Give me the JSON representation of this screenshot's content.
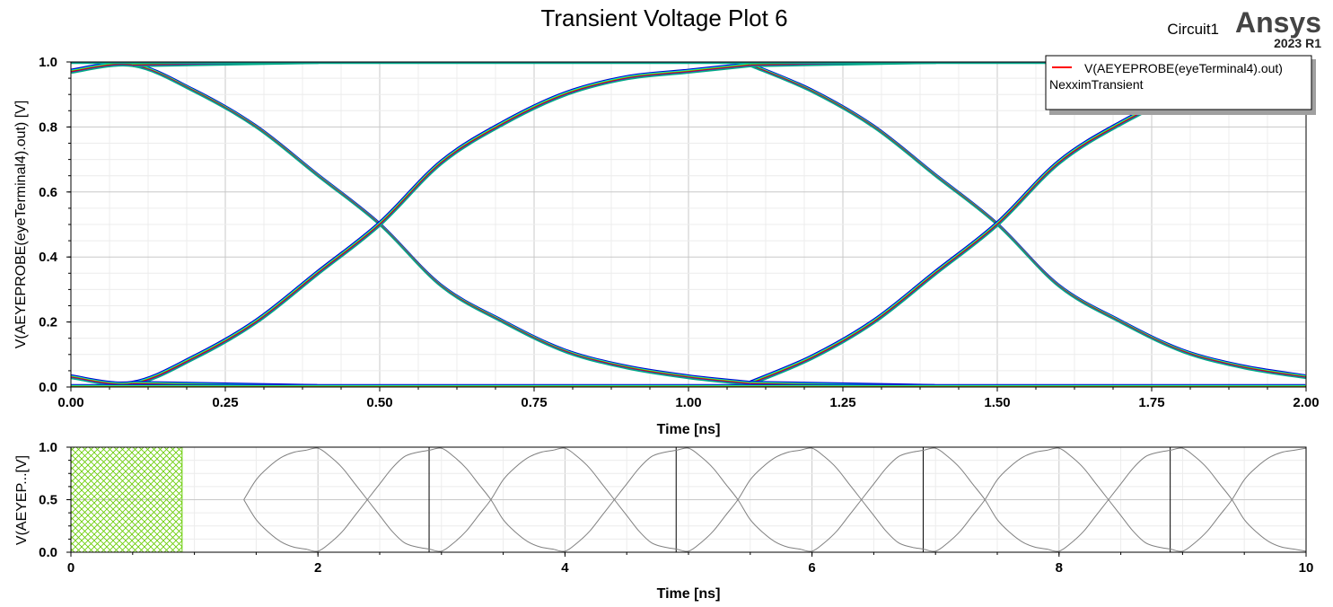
{
  "header": {
    "title": "Transient Voltage Plot 6",
    "circuit": "Circuit1",
    "brand": "Ansys",
    "version": "2023 R1"
  },
  "legend": {
    "series_name": "V(AEYEPROBE(eyeTerminal4).out)",
    "solution": "NexximTransient",
    "swatch_color": "#ff0000"
  },
  "chart_data": [
    {
      "type": "line",
      "role": "eye-diagram",
      "xlabel": "Time [ns]",
      "ylabel": "V(AEYEPROBE(eyeTerminal4).out) [V]",
      "xlim": [
        0,
        2.0
      ],
      "ylim": [
        0,
        1.0
      ],
      "xticks": [
        "0.00",
        "0.25",
        "0.50",
        "0.75",
        "1.00",
        "1.25",
        "1.50",
        "1.75",
        "2.00"
      ],
      "yticks": [
        "0.0",
        "0.2",
        "0.4",
        "0.6",
        "0.8",
        "1.0"
      ],
      "grid": true,
      "legend_position": "top-right",
      "trace_colors": [
        "#0000cc",
        "#00e5e5",
        "#66ee00",
        "#cc0000",
        "#8800aa",
        "#00aa88"
      ],
      "series": [
        {
          "x": [
            0.0,
            0.1,
            0.2,
            0.3,
            0.4,
            0.5,
            0.6,
            0.7,
            0.8,
            0.9,
            1.0,
            1.1
          ],
          "y": [
            0.97,
            0.99,
            0.91,
            0.8,
            0.65,
            0.5,
            0.31,
            0.2,
            0.11,
            0.06,
            0.03,
            0.01
          ]
        },
        {
          "x": [
            0.0,
            0.1,
            0.2,
            0.3,
            0.4,
            0.5,
            0.6,
            0.7,
            0.8,
            0.9,
            1.0,
            1.1
          ],
          "y": [
            0.03,
            0.01,
            0.09,
            0.2,
            0.35,
            0.5,
            0.69,
            0.81,
            0.9,
            0.95,
            0.97,
            0.99
          ]
        },
        {
          "x": [
            1.1,
            1.2,
            1.3,
            1.4,
            1.5,
            1.6,
            1.7,
            1.8,
            1.9,
            2.0
          ],
          "y": [
            0.99,
            0.91,
            0.8,
            0.65,
            0.5,
            0.31,
            0.2,
            0.11,
            0.06,
            0.03
          ]
        },
        {
          "x": [
            1.1,
            1.2,
            1.3,
            1.4,
            1.5,
            1.6,
            1.7,
            1.8,
            1.9,
            2.0
          ],
          "y": [
            0.01,
            0.09,
            0.2,
            0.35,
            0.5,
            0.69,
            0.81,
            0.9,
            0.95,
            0.97
          ]
        },
        {
          "x": [
            0.1,
            0.4
          ],
          "y": [
            0.99,
            1.0
          ]
        },
        {
          "x": [
            1.1,
            1.4
          ],
          "y": [
            0.99,
            1.0
          ]
        },
        {
          "x": [
            0.1,
            0.4
          ],
          "y": [
            0.01,
            0.0
          ]
        },
        {
          "x": [
            1.1,
            1.4
          ],
          "y": [
            0.01,
            0.0
          ]
        },
        {
          "x": [
            0.0,
            2.0
          ],
          "y": [
            1.0,
            1.0
          ]
        },
        {
          "x": [
            0.0,
            2.0
          ],
          "y": [
            0.0,
            0.0
          ]
        }
      ]
    },
    {
      "type": "line",
      "role": "waveform-overview",
      "xlabel": "Time [ns]",
      "ylabel": "V(AEYEP...[V]",
      "xlim": [
        0,
        10
      ],
      "ylim": [
        0,
        1.0
      ],
      "xticks": [
        "0",
        "2",
        "4",
        "6",
        "8",
        "10"
      ],
      "yticks": [
        "0.0",
        "0.5",
        "1.0"
      ],
      "grid": true,
      "trace_color": "#808080",
      "ignored_region": [
        0,
        0.9
      ],
      "ignored_region_color": "#66cc00",
      "marker_x": [
        2.9,
        4.9,
        6.9,
        8.9
      ],
      "series": [
        {
          "x": [
            1.4,
            1.5,
            1.6,
            1.7,
            1.8,
            1.9,
            2.0,
            2.1,
            2.2,
            2.3,
            2.4,
            2.5,
            2.6,
            2.7,
            2.8,
            2.9,
            3.0,
            3.1,
            3.2,
            3.3,
            3.4,
            3.5,
            3.6,
            3.7,
            3.8,
            3.9,
            4.0,
            4.1,
            4.2,
            4.3,
            4.4,
            4.5,
            4.6,
            4.7,
            4.8,
            4.9,
            5.0,
            5.1,
            5.2,
            5.3,
            5.4,
            5.5,
            5.6,
            5.7,
            5.8,
            5.9,
            6.0,
            6.1,
            6.2,
            6.3,
            6.4,
            6.5,
            6.6,
            6.7,
            6.8,
            6.9,
            7.0,
            7.1,
            7.2,
            7.3,
            7.4,
            7.5,
            7.6,
            7.7,
            7.8,
            7.9,
            8.0,
            8.1,
            8.2,
            8.3,
            8.4,
            8.5,
            8.6,
            8.7,
            8.8,
            8.9,
            9.0,
            9.1,
            9.2,
            9.3,
            9.4,
            9.5,
            9.6,
            9.7,
            9.8,
            9.9,
            10.0
          ],
          "y": [
            0.5,
            0.69,
            0.81,
            0.9,
            0.95,
            0.97,
            0.99,
            0.91,
            0.8,
            0.65,
            0.5,
            0.35,
            0.2,
            0.09,
            0.05,
            0.03,
            0.01,
            0.09,
            0.2,
            0.35,
            0.5,
            0.69,
            0.81,
            0.9,
            0.95,
            0.97,
            0.99,
            0.91,
            0.8,
            0.65,
            0.5,
            0.35,
            0.2,
            0.09,
            0.05,
            0.03,
            0.01,
            0.09,
            0.2,
            0.35,
            0.5,
            0.69,
            0.81,
            0.9,
            0.95,
            0.97,
            0.99,
            0.91,
            0.8,
            0.65,
            0.5,
            0.35,
            0.2,
            0.09,
            0.05,
            0.03,
            0.01,
            0.09,
            0.2,
            0.35,
            0.5,
            0.69,
            0.81,
            0.9,
            0.95,
            0.97,
            0.99,
            0.91,
            0.8,
            0.65,
            0.5,
            0.35,
            0.2,
            0.09,
            0.05,
            0.03,
            0.01,
            0.09,
            0.2,
            0.35,
            0.5,
            0.69,
            0.81,
            0.9,
            0.95,
            0.97,
            0.99
          ]
        },
        {
          "x": [
            1.4,
            1.5,
            1.6,
            1.7,
            1.8,
            1.9,
            2.0,
            2.1,
            2.2,
            2.3,
            2.4,
            2.5,
            2.6,
            2.7,
            2.8,
            2.9,
            3.0,
            3.1,
            3.2,
            3.3,
            3.4,
            3.5,
            3.6,
            3.7,
            3.8,
            3.9,
            4.0,
            4.1,
            4.2,
            4.3,
            4.4,
            4.5,
            4.6,
            4.7,
            4.8,
            4.9,
            5.0,
            5.1,
            5.2,
            5.3,
            5.4,
            5.5,
            5.6,
            5.7,
            5.8,
            5.9,
            6.0,
            6.1,
            6.2,
            6.3,
            6.4,
            6.5,
            6.6,
            6.7,
            6.8,
            6.9,
            7.0,
            7.1,
            7.2,
            7.3,
            7.4,
            7.5,
            7.6,
            7.7,
            7.8,
            7.9,
            8.0,
            8.1,
            8.2,
            8.3,
            8.4,
            8.5,
            8.6,
            8.7,
            8.8,
            8.9,
            9.0,
            9.1,
            9.2,
            9.3,
            9.4,
            9.5,
            9.6,
            9.7,
            9.8,
            9.9,
            10.0
          ],
          "y": [
            0.5,
            0.31,
            0.19,
            0.1,
            0.05,
            0.03,
            0.01,
            0.09,
            0.2,
            0.35,
            0.5,
            0.65,
            0.8,
            0.91,
            0.95,
            0.97,
            0.99,
            0.91,
            0.8,
            0.65,
            0.5,
            0.31,
            0.19,
            0.1,
            0.05,
            0.03,
            0.01,
            0.09,
            0.2,
            0.35,
            0.5,
            0.65,
            0.8,
            0.91,
            0.95,
            0.97,
            0.99,
            0.91,
            0.8,
            0.65,
            0.5,
            0.31,
            0.19,
            0.1,
            0.05,
            0.03,
            0.01,
            0.09,
            0.2,
            0.35,
            0.5,
            0.65,
            0.8,
            0.91,
            0.95,
            0.97,
            0.99,
            0.91,
            0.8,
            0.65,
            0.5,
            0.31,
            0.19,
            0.1,
            0.05,
            0.03,
            0.01,
            0.09,
            0.2,
            0.35,
            0.5,
            0.65,
            0.8,
            0.91,
            0.95,
            0.97,
            0.99,
            0.91,
            0.8,
            0.65,
            0.5,
            0.31,
            0.19,
            0.1,
            0.05,
            0.03,
            0.01
          ]
        }
      ]
    }
  ]
}
